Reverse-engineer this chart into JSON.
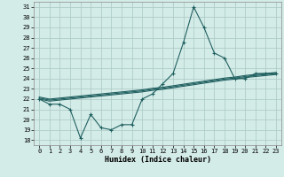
{
  "x": [
    0,
    1,
    2,
    3,
    4,
    5,
    6,
    7,
    8,
    9,
    10,
    11,
    12,
    13,
    14,
    15,
    16,
    17,
    18,
    19,
    20,
    21,
    22,
    23
  ],
  "line_main": [
    22,
    21.5,
    21.5,
    21,
    18.2,
    20.5,
    19.2,
    19,
    19.5,
    19.5,
    22,
    22.5,
    23.5,
    24.5,
    27.5,
    31,
    29,
    26.5,
    26,
    24,
    24,
    24.5,
    24.5,
    24.5
  ],
  "line_reg1": [
    22.0,
    21.8,
    21.9,
    22.0,
    22.1,
    22.2,
    22.3,
    22.4,
    22.5,
    22.6,
    22.7,
    22.85,
    22.95,
    23.1,
    23.25,
    23.4,
    23.55,
    23.7,
    23.85,
    23.95,
    24.1,
    24.2,
    24.3,
    24.4
  ],
  "line_reg2": [
    22.1,
    21.9,
    22.0,
    22.1,
    22.2,
    22.3,
    22.4,
    22.5,
    22.6,
    22.7,
    22.8,
    22.95,
    23.05,
    23.2,
    23.35,
    23.5,
    23.65,
    23.8,
    23.95,
    24.05,
    24.2,
    24.3,
    24.4,
    24.5
  ],
  "line_reg3": [
    22.2,
    22.0,
    22.1,
    22.2,
    22.3,
    22.4,
    22.5,
    22.6,
    22.7,
    22.8,
    22.9,
    23.05,
    23.15,
    23.3,
    23.45,
    23.6,
    23.75,
    23.9,
    24.05,
    24.15,
    24.3,
    24.4,
    24.5,
    24.6
  ],
  "bg_color": "#d4ece8",
  "line_color": "#206060",
  "grid_color": "#b0ccc8",
  "xlabel": "Humidex (Indice chaleur)",
  "ylim": [
    17.5,
    31.5
  ],
  "xlim": [
    -0.5,
    23.5
  ],
  "yticks": [
    18,
    19,
    20,
    21,
    22,
    23,
    24,
    25,
    26,
    27,
    28,
    29,
    30,
    31
  ],
  "xticks": [
    0,
    1,
    2,
    3,
    4,
    5,
    6,
    7,
    8,
    9,
    10,
    11,
    12,
    13,
    14,
    15,
    16,
    17,
    18,
    19,
    20,
    21,
    22,
    23
  ]
}
